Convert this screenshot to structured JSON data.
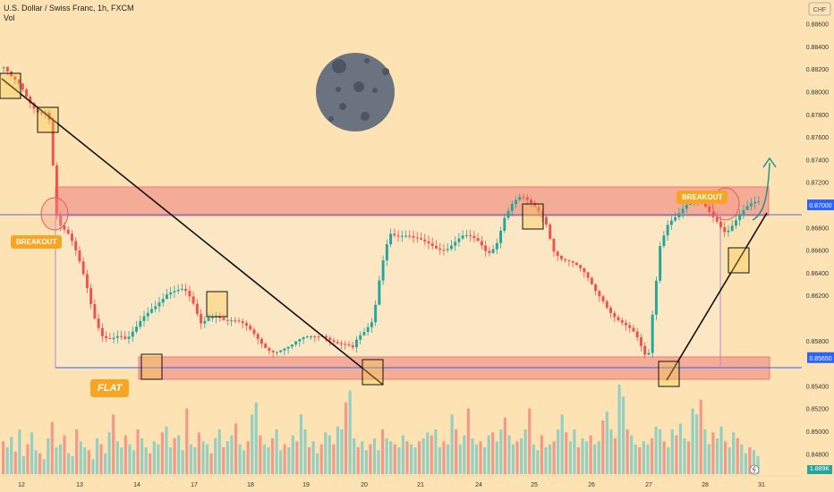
{
  "header": {
    "symbol": "U.S. Dollar / Swiss Franc, 1h, FXCM",
    "sub": "Vol"
  },
  "currency": "CHF",
  "annotations": {
    "breakout_left": "BREAKOUT",
    "breakout_right": "BREAKOUT",
    "flat": "FLAT",
    "vol_value": "1.889K"
  },
  "chart_data": {
    "type": "candlestick",
    "price_ticks": [
      "0.88600",
      "0.88400",
      "0.88200",
      "0.88000",
      "0.87800",
      "0.87600",
      "0.87400",
      "0.87200",
      "0.86800",
      "0.86600",
      "0.86400",
      "0.86200",
      "0.85800",
      "0.85400",
      "0.85200",
      "0.85000",
      "0.84800"
    ],
    "x_ticks": [
      "12",
      "13",
      "14",
      "17",
      "18",
      "19",
      "20",
      "21",
      "24",
      "25",
      "26",
      "27",
      "28",
      "31"
    ],
    "ylim": [
      0.8466,
      0.887
    ],
    "price_labels": [
      {
        "text": "0.87000",
        "value": 0.87,
        "color": "#2962ff"
      },
      {
        "text": "0.85650",
        "value": 0.8565,
        "color": "#2962ff"
      }
    ],
    "resistance_zone": [
      0.87,
      0.8725
    ],
    "support_zone": [
      0.8557,
      0.8574
    ],
    "close_path": [
      [
        0,
        0.8822
      ],
      [
        2,
        0.8808
      ],
      [
        4,
        0.88
      ],
      [
        6,
        0.879
      ],
      [
        8,
        0.8785
      ],
      [
        10,
        0.8788
      ],
      [
        11,
        0.8785
      ],
      [
        12,
        0.874
      ],
      [
        13,
        0.869
      ],
      [
        14,
        0.868
      ],
      [
        16,
        0.8668
      ],
      [
        18,
        0.865
      ],
      [
        20,
        0.863
      ],
      [
        22,
        0.8605
      ],
      [
        24,
        0.859
      ],
      [
        26,
        0.8585
      ],
      [
        28,
        0.8583
      ],
      [
        30,
        0.8575
      ],
      [
        32,
        0.8585
      ],
      [
        34,
        0.86
      ],
      [
        36,
        0.8612
      ],
      [
        38,
        0.862
      ],
      [
        40,
        0.8625
      ],
      [
        42,
        0.8622
      ],
      [
        44,
        0.862
      ],
      [
        46,
        0.861
      ],
      [
        48,
        0.8595
      ],
      [
        50,
        0.8605
      ],
      [
        52,
        0.8608
      ],
      [
        54,
        0.86
      ],
      [
        56,
        0.8595
      ],
      [
        58,
        0.859
      ],
      [
        60,
        0.8586
      ],
      [
        62,
        0.8582
      ],
      [
        64,
        0.8578
      ],
      [
        66,
        0.8575
      ],
      [
        68,
        0.8574
      ],
      [
        70,
        0.8572
      ],
      [
        72,
        0.8575
      ],
      [
        74,
        0.858
      ],
      [
        76,
        0.8585
      ],
      [
        78,
        0.859
      ],
      [
        80,
        0.8585
      ],
      [
        82,
        0.8578
      ],
      [
        84,
        0.8572
      ],
      [
        85,
        0.8568
      ],
      [
        86,
        0.8575
      ],
      [
        88,
        0.8585
      ],
      [
        90,
        0.86
      ],
      [
        92,
        0.865
      ],
      [
        94,
        0.868
      ],
      [
        96,
        0.8672
      ],
      [
        98,
        0.8668
      ],
      [
        100,
        0.8665
      ],
      [
        104,
        0.8668
      ],
      [
        108,
        0.8665
      ],
      [
        112,
        0.8668
      ],
      [
        116,
        0.8665
      ],
      [
        118,
        0.866
      ],
      [
        120,
        0.867
      ],
      [
        122,
        0.8692
      ],
      [
        124,
        0.87
      ],
      [
        126,
        0.8702
      ],
      [
        128,
        0.8698
      ],
      [
        130,
        0.8695
      ],
      [
        132,
        0.869
      ],
      [
        134,
        0.8665
      ],
      [
        136,
        0.8655
      ],
      [
        138,
        0.8648
      ],
      [
        140,
        0.864
      ],
      [
        142,
        0.8633
      ],
      [
        144,
        0.8625
      ],
      [
        146,
        0.862
      ],
      [
        148,
        0.861
      ],
      [
        150,
        0.86
      ],
      [
        152,
        0.859
      ],
      [
        154,
        0.858
      ],
      [
        156,
        0.8565
      ],
      [
        157,
        0.856
      ],
      [
        158,
        0.86
      ],
      [
        160,
        0.867
      ],
      [
        162,
        0.869
      ],
      [
        164,
        0.8692
      ],
      [
        166,
        0.8695
      ],
      [
        168,
        0.8698
      ],
      [
        170,
        0.87
      ],
      [
        172,
        0.8695
      ],
      [
        174,
        0.869
      ],
      [
        176,
        0.868
      ],
      [
        178,
        0.8685
      ],
      [
        180,
        0.869
      ],
      [
        182,
        0.8695
      ],
      [
        184,
        0.87
      ]
    ],
    "volume_ylim": [
      0,
      60
    ],
    "volume": [
      22,
      18,
      25,
      15,
      30,
      12,
      20,
      28,
      16,
      14,
      10,
      24,
      35,
      18,
      20,
      26,
      14,
      12,
      30,
      22,
      18,
      16,
      10,
      24,
      20,
      14,
      28,
      40,
      22,
      18,
      26,
      20,
      16,
      30,
      24,
      18,
      14,
      22,
      20,
      28,
      32,
      18,
      24,
      26,
      16,
      44,
      20,
      18,
      28,
      22,
      20,
      14,
      24,
      30,
      18,
      22,
      26,
      34,
      20,
      16,
      22,
      40,
      48,
      26,
      20,
      18,
      24,
      30,
      16,
      20,
      18,
      26,
      22,
      40,
      30,
      18,
      22,
      14,
      20,
      28,
      26,
      20,
      32,
      30,
      48,
      56,
      24,
      18,
      22,
      16,
      20,
      24,
      16,
      30,
      24,
      22,
      20,
      18,
      26,
      22,
      20,
      18,
      22,
      24,
      28,
      26,
      30,
      18,
      22,
      20,
      40,
      30,
      20,
      26,
      44,
      24,
      20,
      22,
      18,
      26,
      28,
      22,
      30,
      38,
      26,
      20,
      22,
      24,
      30,
      44,
      20,
      16,
      26,
      18,
      20,
      22,
      30,
      40,
      28,
      22,
      30,
      18,
      24,
      22,
      26,
      20,
      22,
      36,
      42,
      30,
      24,
      60,
      52,
      30,
      26,
      20,
      18,
      22,
      20,
      24,
      32,
      30,
      22,
      18,
      30,
      26,
      34,
      24,
      22,
      44,
      40,
      50,
      30,
      20,
      28,
      24,
      32,
      22,
      18,
      28,
      24,
      20,
      14,
      18,
      16,
      12
    ]
  }
}
